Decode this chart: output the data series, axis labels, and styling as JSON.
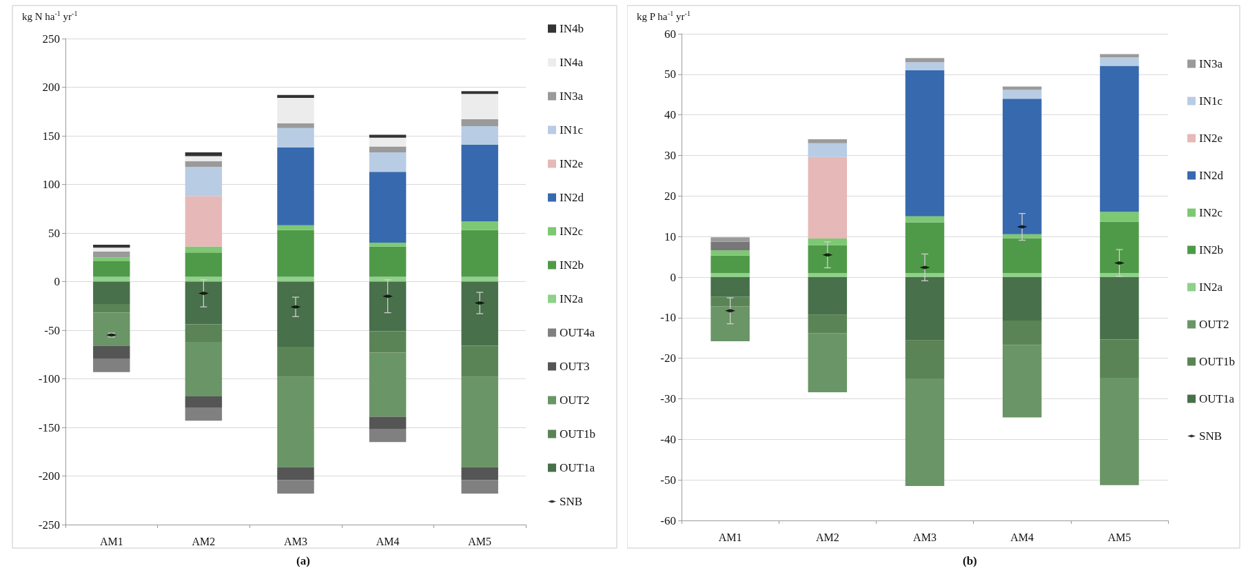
{
  "chart_data": [
    {
      "type": "bar",
      "stacked": true,
      "ylabel": "kg N ha$^{-1}$ yr$^{-1}$",
      "categories": [
        "AM1",
        "AM2",
        "AM3",
        "AM4",
        "AM5"
      ],
      "ylim": [
        -250,
        250
      ],
      "yticks": [
        -250,
        -200,
        -150,
        -100,
        -50,
        0,
        50,
        100,
        150,
        200,
        250
      ],
      "grid": "y",
      "legend": "right",
      "annotations": [
        "(a)"
      ],
      "series": [
        {
          "name": "IN2a",
          "color": "#8fd08a",
          "values": [
            5,
            5,
            5,
            5,
            5
          ]
        },
        {
          "name": "IN2b",
          "color": "#4f9a48",
          "values": [
            16,
            25,
            48,
            31,
            48
          ]
        },
        {
          "name": "IN2c",
          "color": "#7dc873",
          "values": [
            4,
            6,
            5,
            4,
            9
          ]
        },
        {
          "name": "IN2d",
          "color": "#3769ae",
          "values": [
            0,
            0,
            80,
            73,
            79
          ]
        },
        {
          "name": "IN2e",
          "color": "#e6b8b7",
          "values": [
            0,
            52,
            0,
            0,
            0
          ]
        },
        {
          "name": "IN1c",
          "color": "#b8cce4",
          "values": [
            0,
            30,
            20,
            20,
            19
          ]
        },
        {
          "name": "IN3a",
          "color": "#9a9a9a",
          "values": [
            6,
            6,
            5,
            6,
            7
          ]
        },
        {
          "name": "IN4a",
          "color": "#ececec",
          "values": [
            4,
            5,
            26,
            9,
            26
          ]
        },
        {
          "name": "IN4b",
          "color": "#333333",
          "values": [
            3,
            4,
            3,
            3,
            3
          ]
        },
        {
          "name": "OUT1a",
          "color": "#48704a",
          "values": [
            -23,
            -44,
            -67,
            -51,
            -66
          ]
        },
        {
          "name": "OUT1b",
          "color": "#5a8456",
          "values": [
            -9,
            -18,
            -31,
            -22,
            -32
          ]
        },
        {
          "name": "OUT2",
          "color": "#6a9566",
          "values": [
            -34,
            -56,
            -93,
            -66,
            -93
          ]
        },
        {
          "name": "OUT3",
          "color": "#555555",
          "values": [
            -13,
            -12,
            -13,
            -13,
            -13
          ]
        },
        {
          "name": "OUT4a",
          "color": "#808080",
          "values": [
            -14,
            -13,
            -14,
            -13,
            -14
          ]
        },
        {
          "name": "SNB",
          "type": "scatter",
          "color": "#000000",
          "x": [
            "AM1",
            "AM2",
            "AM3",
            "AM4",
            "AM5"
          ],
          "values": [
            -55,
            -12,
            -26,
            -15,
            -22
          ],
          "errors": [
            2,
            14,
            10,
            17,
            11
          ]
        }
      ]
    },
    {
      "type": "bar",
      "stacked": true,
      "ylabel": "kg P ha$^{-1}$ yr$^{-1}$",
      "categories": [
        "AM1",
        "AM2",
        "AM3",
        "AM4",
        "AM5"
      ],
      "ylim": [
        -60,
        60
      ],
      "yticks": [
        -60,
        -50,
        -40,
        -30,
        -20,
        -10,
        0,
        10,
        20,
        30,
        40,
        50,
        60
      ],
      "grid": "y",
      "legend": "right",
      "annotations": [
        "(b)"
      ],
      "series": [
        {
          "name": "IN2a",
          "color": "#8fd08a",
          "values": [
            1,
            1,
            1,
            1,
            1
          ]
        },
        {
          "name": "IN2b",
          "color": "#4f9a48",
          "values": [
            4.3,
            6.9,
            12.5,
            8.6,
            12.7
          ]
        },
        {
          "name": "IN2c",
          "color": "#7dc873",
          "values": [
            1.3,
            1.6,
            1.5,
            1,
            2.4
          ]
        },
        {
          "name": "IN2d",
          "color": "#3769ae",
          "values": [
            0,
            0,
            36,
            33.4,
            36
          ]
        },
        {
          "name": "IN2e",
          "color": "#e6b8b7",
          "values": [
            0,
            20.1,
            0,
            0,
            0
          ]
        },
        {
          "name": "IN1c",
          "color": "#b8cce4",
          "values": [
            0,
            3.4,
            2,
            2.2,
            2.1
          ]
        },
        {
          "color": "#777777",
          "values": [
            2.1,
            0,
            0,
            0,
            0
          ]
        },
        {
          "name": "IN3a",
          "color": "#9a9a9a",
          "values": [
            1.1,
            1,
            1,
            0.8,
            0.8
          ]
        },
        {
          "name": "OUT1a",
          "color": "#48704a",
          "values": [
            -4.8,
            -9.3,
            -15.6,
            -10.7,
            -15.4
          ]
        },
        {
          "name": "OUT1b",
          "color": "#5a8456",
          "values": [
            -2.4,
            -4.5,
            -9.4,
            -6,
            -9.4
          ]
        },
        {
          "name": "OUT2",
          "color": "#6a9566",
          "values": [
            -8.6,
            -14.6,
            -26.5,
            -17.9,
            -26.5
          ]
        },
        {
          "name": "SNB",
          "type": "scatter",
          "color": "#000000",
          "x": [
            "AM1",
            "AM2",
            "AM3",
            "AM4",
            "AM5"
          ],
          "values": [
            -8.3,
            5.5,
            2.4,
            12.4,
            3.5
          ],
          "errors": [
            3.2,
            3.2,
            3.3,
            3.3,
            3.3
          ]
        }
      ]
    }
  ]
}
